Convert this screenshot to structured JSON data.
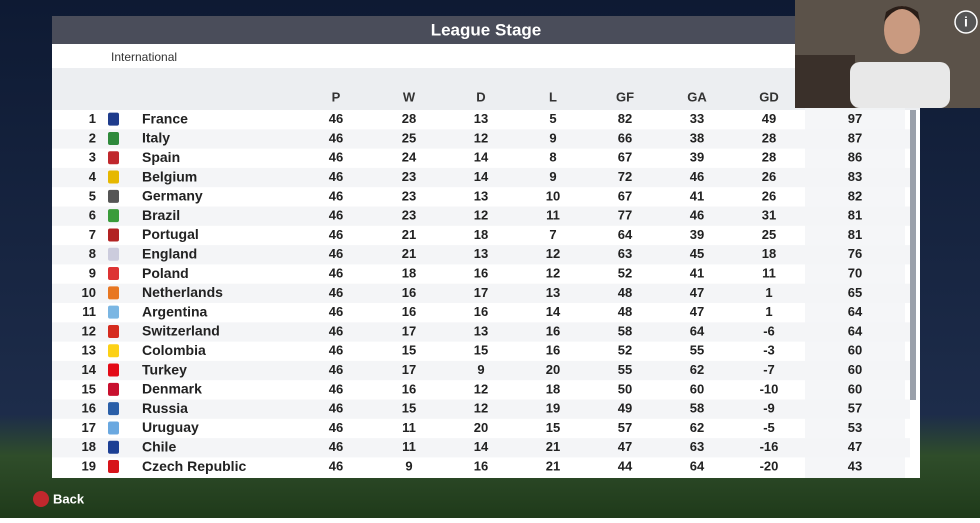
{
  "header": {
    "title": "League Stage",
    "subtitle": "International"
  },
  "table": {
    "columns": [
      "P",
      "W",
      "D",
      "L",
      "GF",
      "GA",
      "GD"
    ],
    "rows": [
      [
        1,
        "France",
        46,
        28,
        13,
        5,
        82,
        33,
        49,
        97
      ],
      [
        2,
        "Italy",
        46,
        25,
        12,
        9,
        66,
        38,
        28,
        87
      ],
      [
        3,
        "Spain",
        46,
        24,
        14,
        8,
        67,
        39,
        28,
        86
      ],
      [
        4,
        "Belgium",
        46,
        23,
        14,
        9,
        72,
        46,
        26,
        83
      ],
      [
        5,
        "Germany",
        46,
        23,
        13,
        10,
        67,
        41,
        26,
        82
      ],
      [
        6,
        "Brazil",
        46,
        23,
        12,
        11,
        77,
        46,
        31,
        81
      ],
      [
        7,
        "Portugal",
        46,
        21,
        18,
        7,
        64,
        39,
        25,
        81
      ],
      [
        8,
        "England",
        46,
        21,
        13,
        12,
        63,
        45,
        18,
        76
      ],
      [
        9,
        "Poland",
        46,
        18,
        16,
        12,
        52,
        41,
        11,
        70
      ],
      [
        10,
        "Netherlands",
        46,
        16,
        17,
        13,
        48,
        47,
        1,
        65
      ],
      [
        11,
        "Argentina",
        46,
        16,
        16,
        14,
        48,
        47,
        1,
        64
      ],
      [
        12,
        "Switzerland",
        46,
        17,
        13,
        16,
        58,
        64,
        -6,
        64
      ],
      [
        13,
        "Colombia",
        46,
        15,
        15,
        16,
        52,
        55,
        -3,
        60
      ],
      [
        14,
        "Turkey",
        46,
        17,
        9,
        20,
        55,
        62,
        -7,
        60
      ],
      [
        15,
        "Denmark",
        46,
        16,
        12,
        18,
        50,
        60,
        -10,
        60
      ],
      [
        16,
        "Russia",
        46,
        15,
        12,
        19,
        49,
        58,
        -9,
        57
      ],
      [
        17,
        "Uruguay",
        46,
        11,
        20,
        15,
        57,
        62,
        -5,
        53
      ],
      [
        18,
        "Chile",
        46,
        11,
        14,
        21,
        47,
        63,
        -16,
        47
      ],
      [
        19,
        "Czech Republic",
        46,
        9,
        16,
        21,
        44,
        64,
        -20,
        43
      ]
    ]
  },
  "footer": {
    "back": "Back"
  },
  "overlay": {
    "info": "i"
  }
}
